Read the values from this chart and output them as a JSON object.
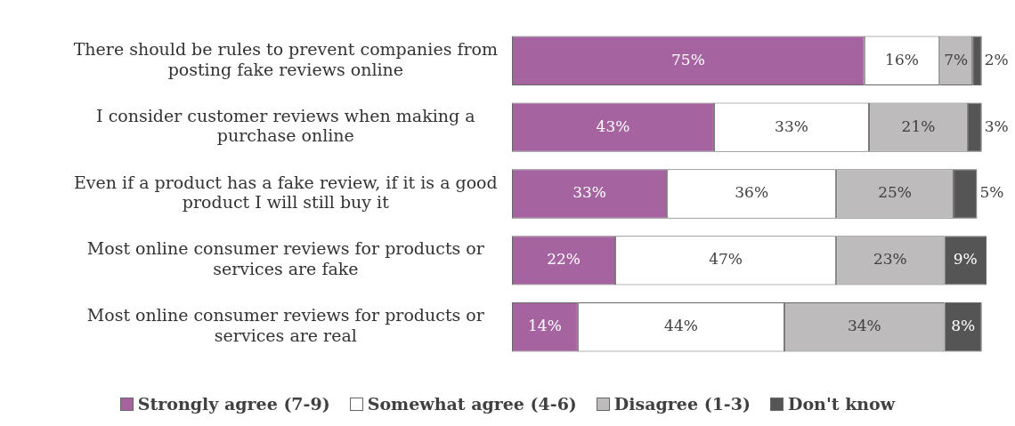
{
  "chart_data": {
    "type": "bar",
    "orientation": "horizontal",
    "stacked": true,
    "tick_labels": "y",
    "legend": "bottom",
    "xlim": [
      0,
      101
    ],
    "categories": [
      "There should be rules to prevent companies from posting fake reviews online",
      "I consider customer reviews when making a purchase online",
      "Even if a product has a fake review, if it is a good product I will still buy it",
      "Most online consumer reviews for products or services are fake",
      "Most online consumer reviews for products or services are real"
    ],
    "series": [
      {
        "name": "Strongly agree (7-9)",
        "color": "#a564a0",
        "values": [
          75,
          43,
          33,
          22,
          14
        ],
        "value_labels": [
          "75%",
          "43%",
          "33%",
          "22%",
          "14%"
        ]
      },
      {
        "name": "Somewhat agree (4-6)",
        "color": "#ffffff",
        "values": [
          16,
          33,
          36,
          47,
          44
        ],
        "value_labels": [
          "16%",
          "33%",
          "36%",
          "47%",
          "44%"
        ]
      },
      {
        "name": "Disagree (1-3)",
        "color": "#bdbbbb",
        "values": [
          7,
          21,
          25,
          23,
          34
        ],
        "value_labels": [
          "7%",
          "21%",
          "25%",
          "23%",
          "34%"
        ]
      },
      {
        "name": "Don't know",
        "color": "#555555",
        "values": [
          2,
          3,
          5,
          9,
          8
        ],
        "value_labels": [
          "2%",
          "3%",
          "5%",
          "9%",
          "8%"
        ]
      }
    ]
  }
}
